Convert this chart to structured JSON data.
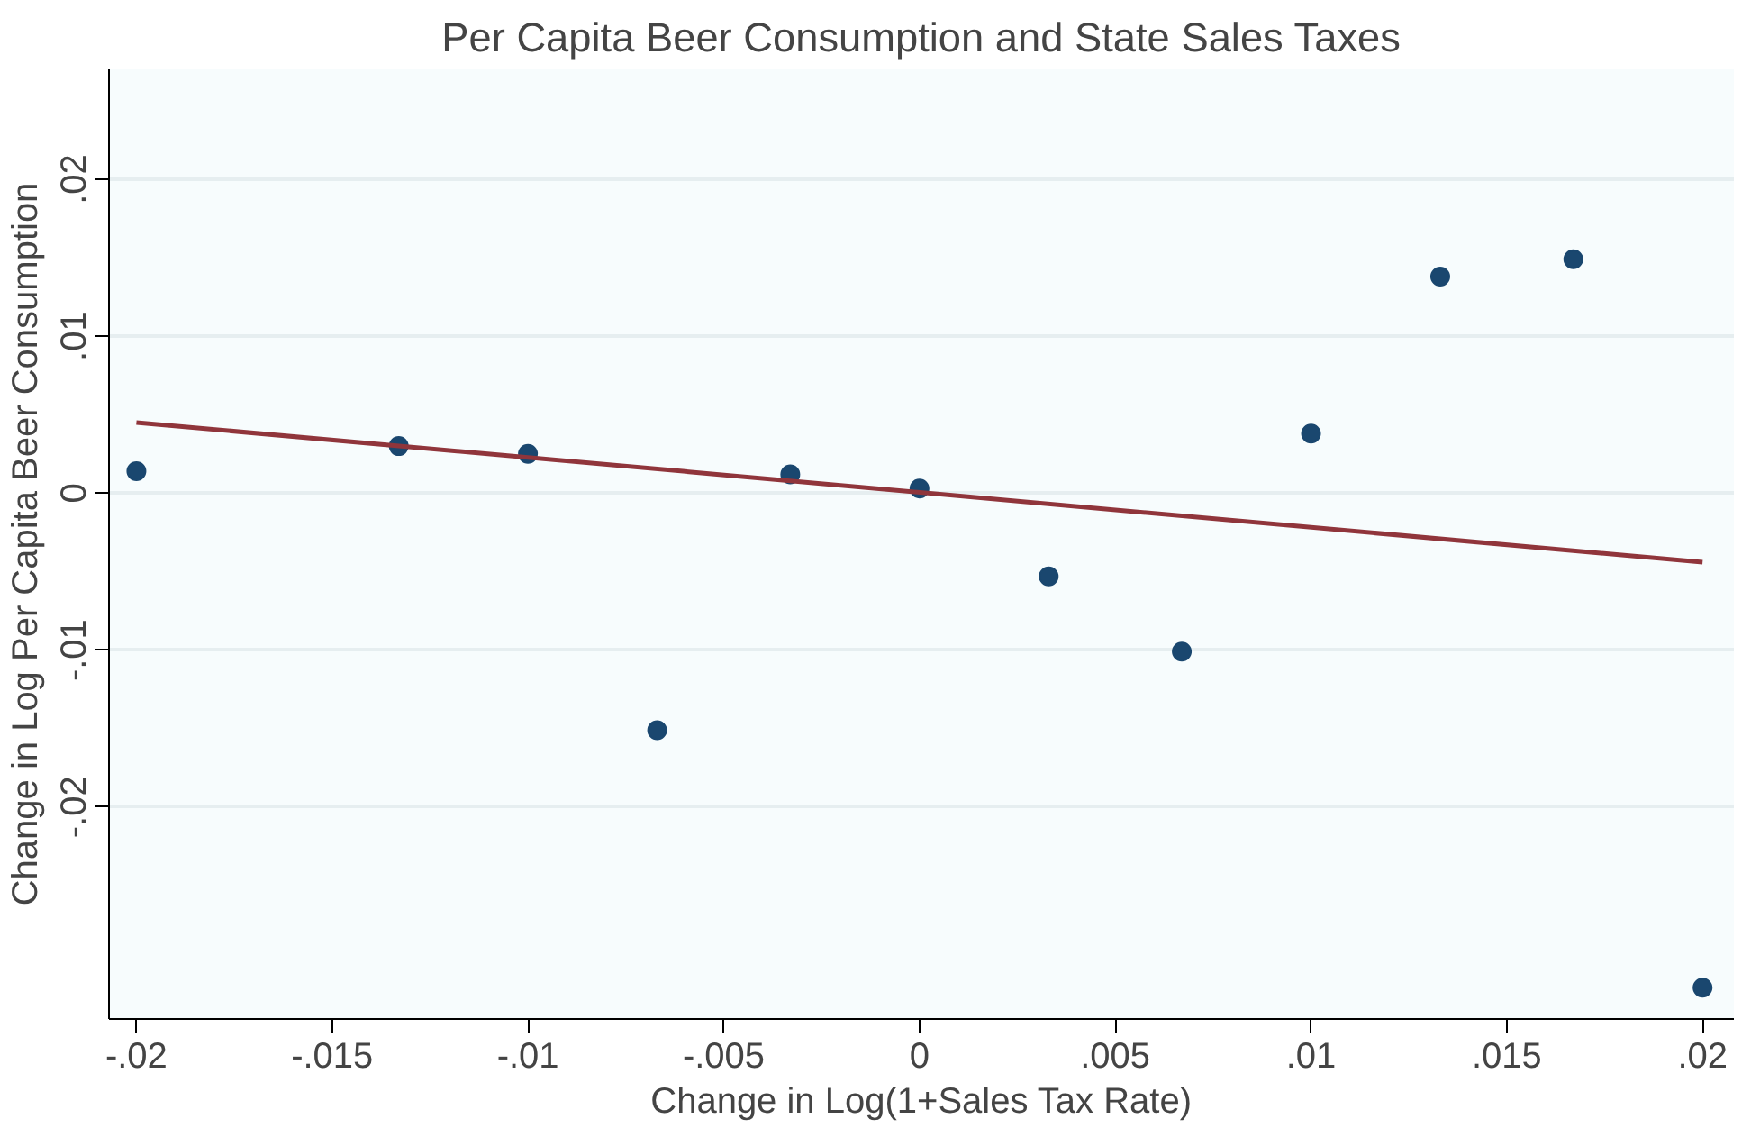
{
  "chart_data": {
    "type": "scatter",
    "title": "Per Capita Beer Consumption and State Sales Taxes",
    "xlabel": "Change in Log(1+Sales Tax Rate)",
    "ylabel": "Change in Log Per Capita Beer Consumption",
    "series": [
      {
        "color": "#1a476f",
        "marker": "circle",
        "x": [
          -0.02,
          -0.0133,
          -0.01,
          -0.0067,
          -0.0033,
          0,
          0.0033,
          0.0067,
          0.01,
          0.0133,
          0.0167,
          0.02
        ],
        "values": [
          0.0014,
          0.003,
          0.0025,
          -0.0151,
          0.0012,
          0.0003,
          -0.0053,
          -0.0101,
          0.0038,
          0.0138,
          0.0149,
          -0.0315
        ]
      },
      {
        "type": "line",
        "marker": "none",
        "color": "#90353b",
        "x": [
          -0.02,
          0.02
        ],
        "values": [
          0.0045,
          -0.0044
        ]
      }
    ],
    "xlim": [
      -0.0207,
      0.0208
    ],
    "ylim": [
      -0.0335,
      0.027
    ],
    "xticks": [
      {
        "value": -0.02,
        "label": "-.02"
      },
      {
        "value": -0.015,
        "label": "-.015"
      },
      {
        "value": -0.01,
        "label": "-.01"
      },
      {
        "value": -0.005,
        "label": "-.005"
      },
      0,
      {
        "value": 0.005,
        "label": ".005"
      },
      {
        "value": 0.01,
        "label": ".01"
      },
      {
        "value": 0.015,
        "label": ".015"
      },
      {
        "value": 0.02,
        "label": ".02"
      }
    ],
    "yticks": [
      {
        "value": -0.02,
        "label": "-.02"
      },
      {
        "value": -0.01,
        "label": "-.01"
      },
      0,
      {
        "value": 0.01,
        "label": ".01"
      },
      {
        "value": 0.02,
        "label": ".02"
      }
    ],
    "grid": "y",
    "line_style": "solid"
  }
}
